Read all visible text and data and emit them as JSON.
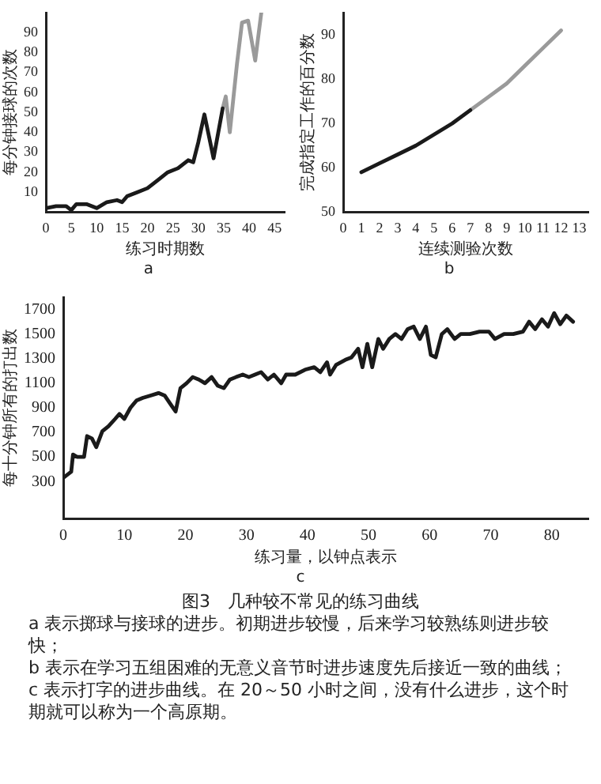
{
  "chart_data": [
    {
      "type": "line",
      "xlabel": "练习时期数",
      "ylabel": "每分钟接球的次数",
      "xlim": [
        0,
        47
      ],
      "ylim": [
        0,
        100
      ],
      "xticks": [
        0,
        5,
        10,
        15,
        20,
        25,
        30,
        35,
        40,
        45
      ],
      "yticks": [
        10,
        20,
        30,
        40,
        50,
        60,
        70,
        80,
        90
      ],
      "grid": false,
      "legend": false,
      "marker": "none",
      "annotations": [
        "a"
      ],
      "series": [
        {
          "color": "#1a1a1a",
          "x": [
            0,
            2,
            4,
            5,
            6,
            8,
            10,
            12,
            14,
            15,
            16,
            18,
            20,
            22,
            24,
            26,
            28,
            29,
            30,
            31.2,
            33,
            34.8
          ],
          "values": [
            2,
            3,
            3,
            1,
            4,
            4,
            2,
            5,
            6,
            5,
            8,
            10,
            12,
            16,
            20,
            22,
            26,
            25,
            35,
            49,
            27,
            52
          ]
        },
        {
          "color": "#9a9a9a",
          "x": [
            34.8,
            35.4,
            36.2,
            37.6,
            38.6,
            39.8,
            41.2,
            42.4
          ],
          "values": [
            52,
            58,
            40,
            74,
            95,
            96,
            76,
            100
          ]
        }
      ]
    },
    {
      "type": "line",
      "xlabel": "连续测验次数",
      "ylabel": "完成指定工作的百分数",
      "xlim": [
        0,
        13.5
      ],
      "ylim": [
        50,
        95
      ],
      "xticks": [
        0,
        1,
        2,
        3,
        4,
        5,
        6,
        7,
        8,
        9,
        10,
        11,
        12,
        13
      ],
      "yticks": [
        50,
        60,
        70,
        80,
        90
      ],
      "grid": false,
      "legend": false,
      "marker": "none",
      "annotations": [
        "b"
      ],
      "series": [
        {
          "color": "#1a1a1a",
          "x": [
            1,
            2,
            3,
            4,
            5,
            6,
            7
          ],
          "values": [
            59,
            61,
            63,
            65,
            67.5,
            70,
            73
          ]
        },
        {
          "color": "#9a9a9a",
          "x": [
            7,
            8,
            9,
            10,
            11,
            12
          ],
          "values": [
            73,
            76,
            79,
            83,
            87,
            91
          ]
        }
      ]
    },
    {
      "type": "line",
      "xlabel": "练习量，以钟点表示",
      "ylabel": "每十分钟所有的打出数",
      "xlim": [
        0,
        86
      ],
      "ylim": [
        0,
        1800
      ],
      "xticks": [
        0,
        10,
        20,
        30,
        40,
        50,
        60,
        70,
        80
      ],
      "yticks": [
        300,
        500,
        700,
        900,
        1100,
        1300,
        1500,
        1700
      ],
      "grid": false,
      "legend": false,
      "marker": "none",
      "annotations": [
        "c",
        "图3　几种较不常见的练习曲线",
        "a 表示掷球与接球的进步。初期进步较慢，后来学习较熟练则进步较快；",
        "b 表示在学习五组困难的无意义音节时进步速度先后接近一致的曲线；",
        "c 表示打字的进步曲线。在 20～50 小时之间，没有什么进步，这个时期就可以称为一个高原期。"
      ],
      "series": [
        {
          "color": "#1a1a1a",
          "x": [
            0,
            1.3,
            1.6,
            2.3,
            3.4,
            3.9,
            4.7,
            5.4,
            6.4,
            7.4,
            8.5,
            9.2,
            10,
            11,
            12,
            13,
            14.3,
            15.6,
            16.6,
            17.7,
            18.4,
            19.2,
            20.2,
            21.2,
            22.2,
            23.2,
            24.3,
            25.3,
            26.3,
            27.3,
            28.3,
            29.4,
            30.4,
            31.4,
            32.4,
            33.5,
            34.5,
            35.7,
            36.5,
            38,
            39.6,
            41.1,
            42.1,
            43.2,
            43.7,
            44.7,
            46.2,
            47.2,
            48.3,
            49,
            49.8,
            50.6,
            51.6,
            52.4,
            53.4,
            54.4,
            55.4,
            56.4,
            57.4,
            58.4,
            59.4,
            60.2,
            61,
            62,
            62.9,
            64.1,
            65.1,
            66.6,
            68.2,
            69.7,
            70.7,
            72.2,
            73.7,
            75.3,
            76.3,
            77.3,
            78.4,
            79.4,
            80.4,
            81.4,
            82.4,
            83.5
          ],
          "values": [
            330,
            380,
            520,
            500,
            500,
            670,
            650,
            580,
            710,
            750,
            810,
            850,
            810,
            900,
            960,
            980,
            1000,
            1020,
            1000,
            920,
            870,
            1060,
            1100,
            1150,
            1130,
            1100,
            1150,
            1080,
            1060,
            1130,
            1150,
            1170,
            1150,
            1170,
            1190,
            1130,
            1170,
            1100,
            1170,
            1170,
            1210,
            1230,
            1190,
            1270,
            1170,
            1250,
            1290,
            1310,
            1380,
            1230,
            1420,
            1230,
            1460,
            1380,
            1460,
            1500,
            1460,
            1540,
            1560,
            1460,
            1560,
            1330,
            1310,
            1500,
            1540,
            1460,
            1500,
            1500,
            1520,
            1520,
            1460,
            1500,
            1500,
            1520,
            1600,
            1540,
            1620,
            1560,
            1670,
            1580,
            1650,
            1600
          ]
        }
      ]
    }
  ]
}
